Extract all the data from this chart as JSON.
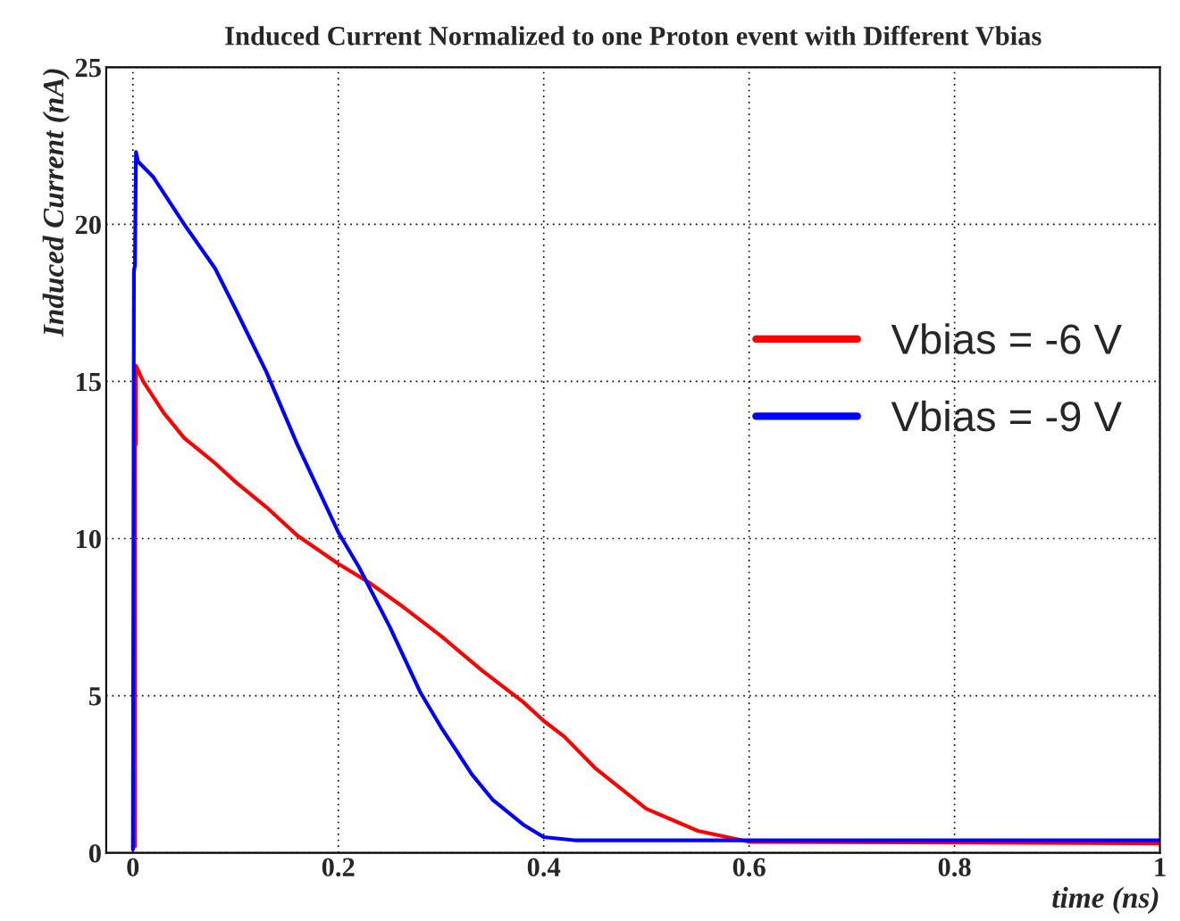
{
  "chart_data": {
    "type": "line",
    "title": "Induced Current Normalized to one Proton event with Different Vbias",
    "xlabel": "time (ns)",
    "ylabel": "Induced Current (nA)",
    "xlim": [
      -0.026,
      1.0
    ],
    "ylim": [
      0,
      25
    ],
    "xticks": [
      0,
      0.2,
      0.4,
      0.6,
      0.8,
      1
    ],
    "yticks": [
      0,
      5,
      10,
      15,
      20,
      25
    ],
    "grid": true,
    "legend": "right",
    "marker": "none",
    "line_style": "solid",
    "series": [
      {
        "name": "Vbias = -6 V",
        "color": "#ff0000",
        "x": [
          0,
          0.002,
          0.002,
          0.003,
          0.003,
          0.01,
          0.03,
          0.05,
          0.08,
          0.1,
          0.13,
          0.16,
          0.2,
          0.23,
          0.26,
          0.3,
          0.34,
          0.38,
          0.4,
          0.42,
          0.45,
          0.5,
          0.55,
          0.6,
          1.0
        ],
        "values": [
          0.2,
          0.2,
          13,
          13,
          15.5,
          15,
          14,
          13.2,
          12.4,
          11.8,
          11,
          10.1,
          9.2,
          8.6,
          7.9,
          6.9,
          5.8,
          4.8,
          4.2,
          3.7,
          2.7,
          1.4,
          0.7,
          0.35,
          0.3
        ]
      },
      {
        "name": "Vbias = -9 V",
        "color": "#0000ff",
        "x": [
          0,
          0.001,
          0.002,
          0.003,
          0.005,
          0.02,
          0.05,
          0.08,
          0.1,
          0.13,
          0.16,
          0.2,
          0.22,
          0.25,
          0.28,
          0.3,
          0.33,
          0.35,
          0.38,
          0.4,
          0.43,
          1.0
        ],
        "values": [
          0.1,
          18.5,
          18.7,
          22.3,
          22,
          21.5,
          20,
          18.6,
          17.3,
          15.3,
          13,
          10.2,
          9.1,
          7.2,
          5.1,
          4.0,
          2.5,
          1.7,
          0.9,
          0.5,
          0.4,
          0.4
        ]
      }
    ]
  }
}
